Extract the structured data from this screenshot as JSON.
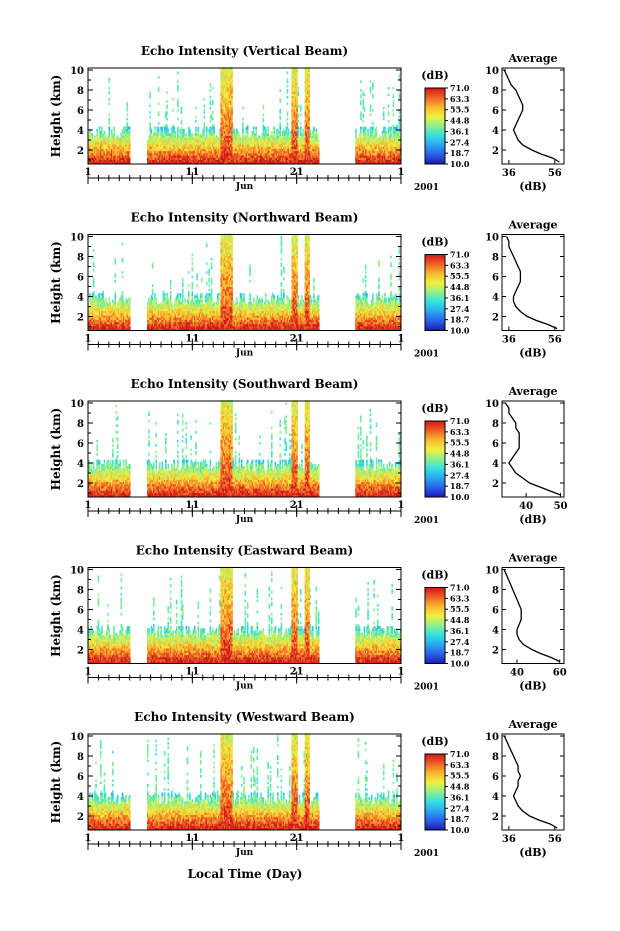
{
  "figure": {
    "xlabel": "Local Time (Day)",
    "colorbar_unit": "(dB)",
    "colorbar_ticks": [
      "71.0",
      "63.3",
      "55.5",
      "44.8",
      "36.1",
      "27.4",
      "18.7",
      "10.0"
    ],
    "colormap": [
      "#1a1ab8",
      "#2b5fe8",
      "#2aa8f0",
      "#35e0e0",
      "#8ef08a",
      "#f0f040",
      "#f8b830",
      "#f06028",
      "#d01818"
    ]
  },
  "chart_data": [
    {
      "type": "heatmap",
      "title": "Echo Intensity (Vertical Beam)",
      "ylabel": "Height (km)",
      "ylim": [
        0.6,
        10.2
      ],
      "xlim": [
        1,
        31
      ],
      "x_ticks": [
        "1",
        "11",
        "21",
        "1"
      ],
      "x_month": "Jun",
      "x_year": "2001",
      "y_ticks": [
        2,
        4,
        6,
        8,
        10
      ],
      "color_range_db": [
        10.0,
        71.0
      ],
      "data_gaps_days": [
        [
          5.0,
          6.6
        ],
        [
          23.2,
          26.6
        ]
      ],
      "strong_echo_days": [
        14.0,
        14.6,
        20.8,
        22.0
      ],
      "average_profile": {
        "title": "Average",
        "xlabel": "(dB)",
        "x_ticks": [
          36,
          56
        ],
        "xlim": [
          33,
          60
        ],
        "ylim": [
          0.6,
          10.2
        ],
        "height_km": [
          0.8,
          1.2,
          1.6,
          2.0,
          2.5,
          3.0,
          3.5,
          4.0,
          4.5,
          5.0,
          5.5,
          6.0,
          6.5,
          7.0,
          7.5,
          8.0,
          8.5,
          9.0,
          9.5,
          10.0
        ],
        "db": [
          58,
          55,
          50,
          46,
          42,
          40,
          39,
          38,
          39,
          40,
          41,
          42,
          42,
          41,
          40,
          39,
          37,
          36,
          35,
          34
        ]
      }
    },
    {
      "type": "heatmap",
      "title": "Echo Intensity (Northward Beam)",
      "ylabel": "Height (km)",
      "ylim": [
        0.6,
        10.2
      ],
      "xlim": [
        1,
        31
      ],
      "x_ticks": [
        "1",
        "11",
        "21",
        "1"
      ],
      "x_month": "Jun",
      "x_year": "2001",
      "y_ticks": [
        2,
        4,
        6,
        8,
        10
      ],
      "color_range_db": [
        10.0,
        71.0
      ],
      "data_gaps_days": [
        [
          5.0,
          6.6
        ],
        [
          23.2,
          26.6
        ]
      ],
      "strong_echo_days": [
        14.0,
        14.6,
        20.8,
        22.0
      ],
      "average_profile": {
        "title": "Average",
        "xlabel": "(dB)",
        "x_ticks": [
          36,
          56
        ],
        "xlim": [
          33,
          60
        ],
        "ylim": [
          0.6,
          10.2
        ],
        "height_km": [
          0.8,
          1.2,
          1.6,
          2.0,
          2.5,
          3.0,
          3.5,
          4.0,
          4.5,
          5.0,
          5.5,
          6.0,
          6.5,
          7.0,
          7.5,
          8.0,
          8.5,
          9.0,
          9.5,
          10.0
        ],
        "db": [
          57,
          53,
          48,
          44,
          41,
          39,
          38,
          38,
          39,
          40,
          41,
          41,
          41,
          40,
          39,
          38,
          37,
          36,
          36,
          35
        ]
      }
    },
    {
      "type": "heatmap",
      "title": "Echo Intensity (Southward Beam)",
      "ylabel": "Height (km)",
      "ylim": [
        0.6,
        10.2
      ],
      "xlim": [
        1,
        31
      ],
      "x_ticks": [
        "1",
        "11",
        "21",
        "1"
      ],
      "x_month": "Jun",
      "x_year": "2001",
      "y_ticks": [
        2,
        4,
        6,
        8,
        10
      ],
      "color_range_db": [
        10.0,
        71.0
      ],
      "data_gaps_days": [
        [
          5.0,
          6.6
        ],
        [
          23.2,
          26.6
        ]
      ],
      "strong_echo_days": [
        14.0,
        14.6,
        20.8,
        22.0
      ],
      "average_profile": {
        "title": "Average",
        "xlabel": "(dB)",
        "x_ticks": [
          40,
          50
        ],
        "xlim": [
          33,
          51
        ],
        "ylim": [
          0.6,
          10.2
        ],
        "height_km": [
          0.8,
          1.2,
          1.6,
          2.0,
          2.5,
          3.0,
          3.5,
          4.0,
          4.5,
          5.0,
          5.5,
          6.0,
          6.5,
          7.0,
          7.5,
          8.0,
          8.5,
          9.0,
          9.5,
          10.0
        ],
        "db": [
          50,
          47,
          44,
          41,
          39,
          37,
          36,
          35,
          36,
          37,
          38,
          38,
          38,
          38,
          37,
          37,
          36,
          35,
          35,
          34
        ]
      }
    },
    {
      "type": "heatmap",
      "title": "Echo Intensity (Eastward Beam)",
      "ylabel": "Height (km)",
      "ylim": [
        0.6,
        10.2
      ],
      "xlim": [
        1,
        31
      ],
      "x_ticks": [
        "1",
        "11",
        "21",
        "1"
      ],
      "x_month": "Jun",
      "x_year": "2001",
      "y_ticks": [
        2,
        4,
        6,
        8,
        10
      ],
      "color_range_db": [
        10.0,
        71.0
      ],
      "data_gaps_days": [
        [
          5.0,
          6.6
        ],
        [
          23.2,
          26.6
        ]
      ],
      "strong_echo_days": [
        14.0,
        14.6,
        20.8,
        22.0
      ],
      "average_profile": {
        "title": "Average",
        "xlabel": "(dB)",
        "x_ticks": [
          40,
          60
        ],
        "xlim": [
          33,
          62
        ],
        "ylim": [
          0.6,
          10.2
        ],
        "height_km": [
          0.8,
          1.2,
          1.6,
          2.0,
          2.5,
          3.0,
          3.5,
          4.0,
          4.5,
          5.0,
          5.5,
          6.0,
          6.5,
          7.0,
          7.5,
          8.0,
          8.5,
          9.0,
          9.5,
          10.0
        ],
        "db": [
          60,
          56,
          51,
          47,
          43,
          41,
          40,
          40,
          41,
          42,
          42,
          42,
          41,
          40,
          39,
          38,
          37,
          36,
          35,
          34
        ]
      }
    },
    {
      "type": "heatmap",
      "title": "Echo Intensity (Westward Beam)",
      "ylabel": "Height (km)",
      "ylim": [
        0.6,
        10.2
      ],
      "xlim": [
        1,
        31
      ],
      "x_ticks": [
        "1",
        "11",
        "21",
        "1"
      ],
      "x_month": "Jun",
      "x_year": "2001",
      "y_ticks": [
        2,
        4,
        6,
        8,
        10
      ],
      "color_range_db": [
        10.0,
        71.0
      ],
      "data_gaps_days": [
        [
          5.0,
          6.6
        ],
        [
          23.2,
          26.6
        ]
      ],
      "strong_echo_days": [
        14.0,
        14.6,
        20.8,
        22.0
      ],
      "average_profile": {
        "title": "Average",
        "xlabel": "(dB)",
        "x_ticks": [
          36,
          56
        ],
        "xlim": [
          33,
          60
        ],
        "ylim": [
          0.6,
          10.2
        ],
        "height_km": [
          0.8,
          1.2,
          1.6,
          2.0,
          2.5,
          3.0,
          3.5,
          4.0,
          4.5,
          5.0,
          5.5,
          6.0,
          6.5,
          7.0,
          7.5,
          8.0,
          8.5,
          9.0,
          9.5,
          10.0
        ],
        "db": [
          57,
          54,
          49,
          45,
          42,
          40,
          39,
          38,
          39,
          40,
          40,
          41,
          40,
          40,
          39,
          38,
          37,
          36,
          35,
          34
        ]
      }
    }
  ]
}
